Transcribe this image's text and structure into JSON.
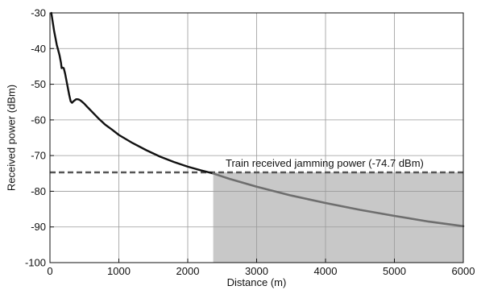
{
  "chart_data": {
    "type": "line",
    "xlabel": "Distance (m)",
    "ylabel": "Received power (dBm)",
    "xlim": [
      0,
      6000
    ],
    "ylim": [
      -100,
      -30
    ],
    "xticks": [
      0,
      1000,
      2000,
      3000,
      4000,
      5000,
      6000
    ],
    "yticks": [
      -100,
      -90,
      -80,
      -70,
      -60,
      -50,
      -40,
      -30
    ],
    "xtick_labels": [
      "0",
      "1000",
      "2000",
      "3000",
      "4000",
      "5000",
      "6000"
    ],
    "ytick_labels": [
      "-100",
      "-90",
      "-80",
      "-70",
      "-60",
      "-50",
      "-40",
      "-30"
    ],
    "grid": true,
    "threshold": {
      "value": -74.7,
      "label": "Train received jamming power  (-74.7 dBm)",
      "color": "#555555"
    },
    "shaded_region": {
      "x_start": 2370,
      "x_end": 6000,
      "y_start": -100,
      "y_end": -74.7,
      "color": "#c8c8c8"
    },
    "crossing_x": 2370,
    "series": [
      {
        "color": "#111111",
        "x": [
          20,
          40,
          60,
          80,
          100,
          120,
          140,
          160,
          170,
          180,
          200,
          220,
          240,
          260,
          280,
          300,
          320,
          340,
          360,
          380,
          400,
          420,
          440,
          460,
          500,
          550,
          600,
          700,
          800,
          900,
          1000,
          1200,
          1400,
          1600,
          1800,
          2000,
          2200,
          2370
        ],
        "y": [
          -30,
          -32.5,
          -35,
          -37,
          -39,
          -40.5,
          -42,
          -44,
          -45.5,
          -45.3,
          -45.5,
          -47,
          -49,
          -51,
          -53,
          -54.8,
          -55.2,
          -54.8,
          -54.5,
          -54.2,
          -54.2,
          -54.3,
          -54.5,
          -54.8,
          -55.5,
          -56.5,
          -57.5,
          -59.5,
          -61.3,
          -62.7,
          -64.2,
          -66.5,
          -68.5,
          -70.3,
          -71.8,
          -73.1,
          -74.2,
          -75
        ]
      },
      {
        "color": "#6e6e6e",
        "x": [
          2370,
          2600,
          3000,
          3500,
          4000,
          4500,
          5000,
          5500,
          6000
        ],
        "y": [
          -75,
          -76.5,
          -78.7,
          -81.2,
          -83.3,
          -85.2,
          -86.9,
          -88.5,
          -89.8
        ]
      }
    ]
  }
}
